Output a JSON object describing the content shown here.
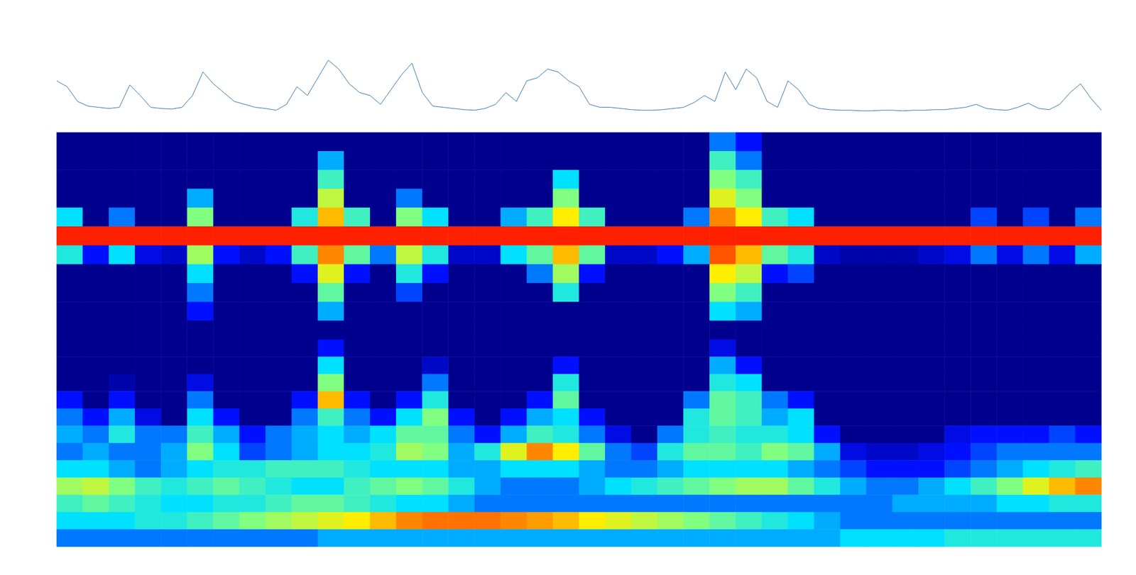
{
  "chart_data": [
    {
      "type": "line",
      "color": "#2a6fa8",
      "xlim": [
        0,
        100
      ],
      "ylim": [
        0,
        1
      ],
      "tick_labels": false,
      "grid": false,
      "x": [
        0,
        1,
        2,
        3,
        4,
        5,
        6,
        7,
        8,
        9,
        10,
        11,
        12,
        13,
        14,
        15,
        16,
        17,
        18,
        19,
        20,
        21,
        22,
        23,
        24,
        25,
        26,
        27,
        28,
        29,
        30,
        31,
        32,
        33,
        34,
        35,
        36,
        37,
        38,
        39,
        40,
        41,
        42,
        43,
        44,
        45,
        46,
        47,
        48,
        49,
        50,
        51,
        52,
        53,
        54,
        55,
        56,
        57,
        58,
        59,
        60,
        61,
        62,
        63,
        64,
        65,
        66,
        67,
        68,
        69,
        70,
        71,
        72,
        73,
        74,
        75,
        76,
        77,
        78,
        79,
        80,
        81,
        82,
        83,
        84,
        85,
        86,
        87,
        88,
        89,
        90,
        91,
        92,
        93,
        94,
        95,
        96,
        97,
        98,
        99,
        100
      ],
      "values": [
        0.55,
        0.45,
        0.2,
        0.12,
        0.1,
        0.08,
        0.1,
        0.48,
        0.3,
        0.1,
        0.08,
        0.07,
        0.1,
        0.3,
        0.7,
        0.5,
        0.35,
        0.2,
        0.15,
        0.1,
        0.08,
        0.05,
        0.15,
        0.45,
        0.3,
        0.6,
        0.9,
        0.75,
        0.5,
        0.35,
        0.3,
        0.15,
        0.4,
        0.65,
        0.85,
        0.35,
        0.12,
        0.1,
        0.08,
        0.06,
        0.05,
        0.08,
        0.15,
        0.35,
        0.2,
        0.55,
        0.6,
        0.75,
        0.7,
        0.55,
        0.45,
        0.15,
        0.1,
        0.1,
        0.08,
        0.06,
        0.05,
        0.05,
        0.06,
        0.08,
        0.1,
        0.18,
        0.3,
        0.2,
        0.7,
        0.4,
        0.75,
        0.6,
        0.2,
        0.1,
        0.55,
        0.4,
        0.15,
        0.08,
        0.06,
        0.05,
        0.05,
        0.04,
        0.04,
        0.05,
        0.05,
        0.04,
        0.05,
        0.05,
        0.06,
        0.06,
        0.08,
        0.1,
        0.15,
        0.08,
        0.06,
        0.05,
        0.1,
        0.17,
        0.08,
        0.06,
        0.15,
        0.35,
        0.5,
        0.25,
        0.05
      ]
    },
    {
      "type": "heatmap",
      "color_range": [
        0,
        1
      ],
      "tick_labels": false,
      "cells": [
        [
          0,
          0,
          0,
          0,
          0,
          0,
          0,
          0,
          0,
          0,
          0,
          0,
          0,
          0,
          0,
          0,
          0,
          0,
          0,
          0,
          0,
          0,
          0,
          0,
          0,
          0.3,
          0.2,
          0,
          0,
          0,
          0,
          0,
          0,
          0,
          0,
          0,
          0,
          0,
          0,
          0
        ],
        [
          0,
          0,
          0,
          0,
          0,
          0,
          0,
          0,
          0,
          0,
          0.35,
          0,
          0,
          0,
          0,
          0,
          0,
          0,
          0,
          0,
          0,
          0,
          0,
          0,
          0,
          0.5,
          0.3,
          0,
          0,
          0,
          0,
          0,
          0,
          0,
          0,
          0,
          0,
          0,
          0,
          0
        ],
        [
          0,
          0,
          0,
          0,
          0,
          0,
          0,
          0,
          0,
          0,
          0.5,
          0,
          0,
          0,
          0,
          0,
          0,
          0,
          0,
          0.4,
          0,
          0,
          0,
          0,
          0,
          0.6,
          0.5,
          0,
          0,
          0,
          0,
          0,
          0,
          0,
          0,
          0,
          0,
          0,
          0,
          0
        ],
        [
          0,
          0,
          0,
          0,
          0,
          0.35,
          0,
          0,
          0,
          0,
          0.7,
          0,
          0,
          0.3,
          0,
          0,
          0,
          0,
          0,
          0.6,
          0,
          0,
          0,
          0,
          0,
          0.75,
          0.6,
          0,
          0,
          0,
          0,
          0,
          0,
          0,
          0,
          0,
          0,
          0,
          0,
          0
        ],
        [
          0.4,
          0,
          0.3,
          0,
          0,
          0.6,
          0,
          0,
          0,
          0.45,
          0.85,
          0.5,
          0,
          0.6,
          0.4,
          0,
          0,
          0.35,
          0.5,
          0.8,
          0.5,
          0,
          0,
          0,
          0.3,
          0.9,
          0.8,
          0.5,
          0.4,
          0,
          0,
          0,
          0,
          0,
          0,
          0.25,
          0,
          0.25,
          0,
          0.3
        ],
        [
          1,
          1,
          1,
          1,
          1,
          1,
          1,
          1,
          1,
          1,
          1,
          1,
          1,
          1,
          1,
          1,
          1,
          1,
          1,
          1,
          1,
          1,
          1,
          1,
          1,
          1,
          1,
          1,
          1,
          1,
          1,
          1,
          1,
          1,
          1,
          1,
          1,
          1,
          1,
          1
        ],
        [
          0.45,
          0.2,
          0.4,
          0.15,
          0.1,
          0.65,
          0.2,
          0.1,
          0.2,
          0.5,
          0.9,
          0.55,
          0.3,
          0.7,
          0.45,
          0.1,
          0.1,
          0.4,
          0.55,
          0.85,
          0.55,
          0.1,
          0.1,
          0.2,
          0.35,
          0.95,
          0.85,
          0.55,
          0.45,
          0.1,
          0.05,
          0.05,
          0.05,
          0.1,
          0.15,
          0.3,
          0.15,
          0.3,
          0.15,
          0.35
        ],
        [
          0,
          0,
          0,
          0,
          0,
          0.4,
          0,
          0,
          0,
          0.2,
          0.75,
          0.2,
          0,
          0.45,
          0.2,
          0,
          0,
          0,
          0.3,
          0.65,
          0.2,
          0,
          0,
          0,
          0,
          0.8,
          0.7,
          0.2,
          0.25,
          0,
          0,
          0,
          0,
          0,
          0,
          0,
          0,
          0,
          0,
          0
        ],
        [
          0,
          0,
          0,
          0,
          0,
          0.3,
          0,
          0,
          0,
          0,
          0.55,
          0,
          0,
          0.25,
          0,
          0,
          0,
          0,
          0,
          0.45,
          0,
          0,
          0,
          0,
          0,
          0.6,
          0.5,
          0,
          0,
          0,
          0,
          0,
          0,
          0,
          0,
          0,
          0,
          0,
          0,
          0
        ],
        [
          0,
          0,
          0,
          0,
          0,
          0.2,
          0,
          0,
          0,
          0,
          0.35,
          0,
          0,
          0,
          0,
          0,
          0,
          0,
          0,
          0,
          0,
          0,
          0,
          0,
          0,
          0.4,
          0.35,
          0,
          0,
          0,
          0,
          0,
          0,
          0,
          0,
          0,
          0,
          0,
          0,
          0
        ],
        [
          0,
          0,
          0,
          0,
          0,
          0,
          0,
          0,
          0,
          0,
          0,
          0,
          0,
          0,
          0,
          0,
          0,
          0,
          0,
          0,
          0,
          0,
          0,
          0,
          0,
          0,
          0,
          0,
          0,
          0,
          0,
          0,
          0,
          0,
          0,
          0,
          0,
          0,
          0,
          0
        ]
      ]
    },
    {
      "type": "heatmap",
      "color_range": [
        0,
        1
      ],
      "tick_labels": false,
      "cells": [
        [
          0,
          0,
          0,
          0,
          0,
          0,
          0,
          0,
          0,
          0,
          0.2,
          0,
          0,
          0,
          0,
          0,
          0,
          0,
          0,
          0,
          0,
          0,
          0,
          0,
          0,
          0.15,
          0,
          0,
          0,
          0,
          0,
          0,
          0,
          0,
          0,
          0,
          0,
          0,
          0,
          0
        ],
        [
          0,
          0,
          0,
          0,
          0,
          0,
          0,
          0,
          0,
          0,
          0.4,
          0,
          0,
          0,
          0.1,
          0,
          0,
          0,
          0,
          0.2,
          0,
          0,
          0,
          0,
          0,
          0.35,
          0.2,
          0,
          0,
          0,
          0,
          0,
          0,
          0,
          0,
          0,
          0,
          0,
          0,
          0
        ],
        [
          0,
          0,
          0.05,
          0,
          0,
          0.15,
          0,
          0,
          0,
          0,
          0.6,
          0,
          0,
          0,
          0.3,
          0,
          0,
          0,
          0,
          0.45,
          0,
          0,
          0,
          0,
          0,
          0.45,
          0.4,
          0,
          0,
          0,
          0,
          0,
          0,
          0,
          0,
          0,
          0,
          0,
          0,
          0
        ],
        [
          0.2,
          0,
          0.2,
          0,
          0,
          0.3,
          0,
          0,
          0,
          0.2,
          0.85,
          0.2,
          0,
          0.2,
          0.45,
          0,
          0,
          0,
          0.2,
          0.55,
          0,
          0,
          0,
          0,
          0.3,
          0.55,
          0.5,
          0.3,
          0.2,
          0,
          0,
          0,
          0,
          0,
          0,
          0,
          0,
          0,
          0,
          0
        ],
        [
          0.3,
          0.2,
          0.35,
          0.15,
          0,
          0.4,
          0.2,
          0,
          0,
          0.3,
          0.5,
          0.3,
          0.2,
          0.4,
          0.6,
          0.2,
          0,
          0.2,
          0.35,
          0.4,
          0.2,
          0,
          0,
          0,
          0.45,
          0.55,
          0.5,
          0.35,
          0.4,
          0,
          0,
          0,
          0,
          0,
          0,
          0,
          0,
          0,
          0,
          0
        ],
        [
          0.35,
          0.3,
          0.45,
          0.3,
          0.3,
          0.5,
          0.35,
          0.2,
          0.3,
          0.35,
          0.4,
          0.35,
          0.4,
          0.55,
          0.55,
          0.3,
          0.2,
          0.35,
          0.5,
          0.45,
          0.3,
          0.15,
          0,
          0.3,
          0.45,
          0.5,
          0.45,
          0.45,
          0.4,
          0.2,
          0,
          0,
          0,
          0,
          0.15,
          0.2,
          0.2,
          0.2,
          0.25,
          0.2
        ],
        [
          0.3,
          0.35,
          0.3,
          0.3,
          0.35,
          0.6,
          0.4,
          0.25,
          0.3,
          0.35,
          0.4,
          0.4,
          0.45,
          0.65,
          0.6,
          0.35,
          0.45,
          0.75,
          0.9,
          0.8,
          0.55,
          0.3,
          0.25,
          0.45,
          0.55,
          0.55,
          0.5,
          0.6,
          0.55,
          0.35,
          0.15,
          0.1,
          0.1,
          0.15,
          0.2,
          0.25,
          0.3,
          0.3,
          0.3,
          0.3
        ],
        [
          0.4,
          0.4,
          0.35,
          0.3,
          0.35,
          0.4,
          0.45,
          0.45,
          0.5,
          0.5,
          0.5,
          0.45,
          0.4,
          0.4,
          0.4,
          0.35,
          0.35,
          0.4,
          0.4,
          0.4,
          0.35,
          0.3,
          0.3,
          0.35,
          0.4,
          0.4,
          0.4,
          0.4,
          0.35,
          0.3,
          0.25,
          0.2,
          0.2,
          0.2,
          0.25,
          0.3,
          0.35,
          0.4,
          0.45,
          0.5
        ],
        [
          0.65,
          0.7,
          0.6,
          0.5,
          0.45,
          0.5,
          0.55,
          0.5,
          0.45,
          0.4,
          0.4,
          0.5,
          0.55,
          0.6,
          0.55,
          0.45,
          0.35,
          0.3,
          0.3,
          0.3,
          0.35,
          0.4,
          0.45,
          0.5,
          0.55,
          0.6,
          0.65,
          0.65,
          0.55,
          0.45,
          0.35,
          0.3,
          0.3,
          0.35,
          0.4,
          0.5,
          0.6,
          0.75,
          0.85,
          0.9
        ],
        [
          0.5,
          0.55,
          0.5,
          0.45,
          0.4,
          0.4,
          0.45,
          0.45,
          0.5,
          0.55,
          0.55,
          0.5,
          0.45,
          0.4,
          0.4,
          0.35,
          0.3,
          0.3,
          0.3,
          0.3,
          0.3,
          0.3,
          0.3,
          0.3,
          0.3,
          0.3,
          0.3,
          0.3,
          0.3,
          0.3,
          0.3,
          0.3,
          0.35,
          0.35,
          0.35,
          0.35,
          0.4,
          0.4,
          0.45,
          0.45
        ],
        [
          0.4,
          0.4,
          0.4,
          0.45,
          0.45,
          0.5,
          0.55,
          0.6,
          0.65,
          0.7,
          0.75,
          0.8,
          0.85,
          0.9,
          0.92,
          0.92,
          0.92,
          0.9,
          0.88,
          0.85,
          0.8,
          0.75,
          0.7,
          0.65,
          0.6,
          0.55,
          0.5,
          0.45,
          0.4,
          0.35,
          0.3,
          0.3,
          0.3,
          0.3,
          0.3,
          0.3,
          0.3,
          0.3,
          0.3,
          0.3
        ],
        [
          0.3,
          0.3,
          0.3,
          0.3,
          0.3,
          0.3,
          0.3,
          0.3,
          0.3,
          0.3,
          0.35,
          0.35,
          0.35,
          0.35,
          0.35,
          0.35,
          0.35,
          0.35,
          0.35,
          0.35,
          0.35,
          0.35,
          0.35,
          0.35,
          0.35,
          0.35,
          0.35,
          0.35,
          0.35,
          0.35,
          0.4,
          0.4,
          0.4,
          0.4,
          0.45,
          0.45,
          0.45,
          0.45,
          0.45,
          0.45
        ]
      ]
    }
  ]
}
